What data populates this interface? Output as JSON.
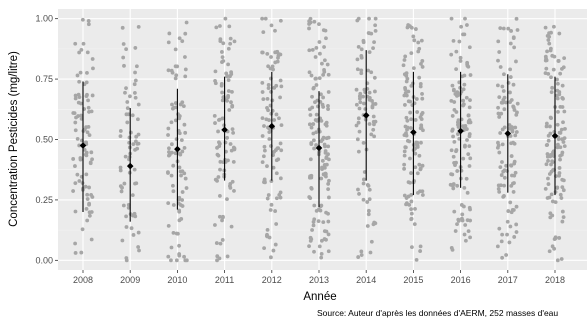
{
  "chart_data": {
    "type": "scatter",
    "xlabel": "Année",
    "ylabel": "Concentration Pesticides (mg/litre)",
    "caption": "Source: Auteur d'après les données d'AERM, 252 masses d'eau",
    "categories": [
      "2008",
      "2009",
      "2010",
      "2011",
      "2012",
      "2013",
      "2014",
      "2015",
      "2016",
      "2017",
      "2018"
    ],
    "ylim": [
      -0.04,
      1.04
    ],
    "yticks": [
      0.0,
      0.25,
      0.5,
      0.75,
      1.0
    ],
    "ytick_labels": [
      "0.00",
      "0.25",
      "0.50",
      "0.75",
      "1.00"
    ],
    "grid": true,
    "panel_color": "#ebebeb",
    "point_color": "#a6a6a6",
    "summary_color": "#000000",
    "means": [
      0.475,
      0.39,
      0.46,
      0.54,
      0.555,
      0.465,
      0.6,
      0.53,
      0.535,
      0.525,
      0.515
    ],
    "sd_low": [
      0.2,
      0.16,
      0.21,
      0.33,
      0.33,
      0.22,
      0.33,
      0.27,
      0.3,
      0.28,
      0.27
    ],
    "sd_high": [
      0.74,
      0.63,
      0.71,
      0.76,
      0.78,
      0.7,
      0.87,
      0.78,
      0.78,
      0.77,
      0.76
    ],
    "n_points": [
      90,
      70,
      90,
      100,
      100,
      140,
      90,
      120,
      120,
      110,
      130
    ]
  }
}
